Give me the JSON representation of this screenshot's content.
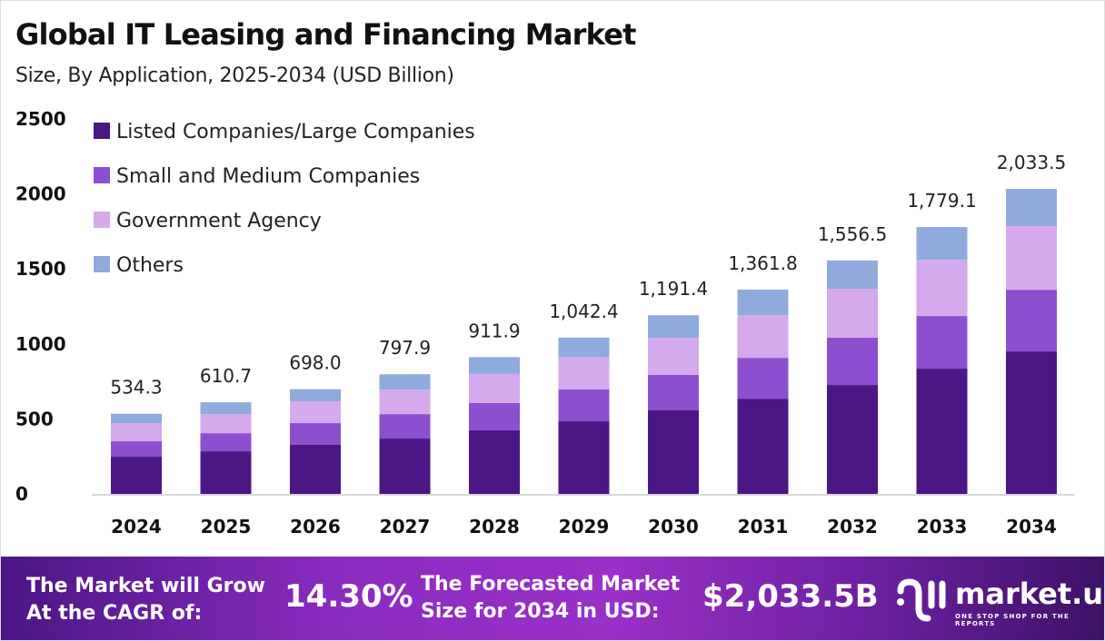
{
  "chart_data": {
    "type": "bar",
    "stacked": true,
    "title": "Global IT Leasing and Financing Market",
    "subtitle": "Size, By Application, 2025-2034 (USD Billion)",
    "categories": [
      "2024",
      "2025",
      "2026",
      "2027",
      "2028",
      "2029",
      "2030",
      "2031",
      "2032",
      "2033",
      "2034"
    ],
    "series": [
      {
        "name": "Listed Companies/Large Companies",
        "color": "#4b1785",
        "values": [
          248,
          284,
          327,
          369,
          424,
          484,
          557,
          635,
          726,
          835,
          950
        ]
      },
      {
        "name": "Small and Medium Companies",
        "color": "#8b4fd0",
        "values": [
          103,
          121,
          145,
          163,
          182,
          212,
          236,
          272,
          315,
          351,
          411
        ]
      },
      {
        "name": "Government Agency",
        "color": "#d4aaec",
        "values": [
          121,
          127,
          145,
          163,
          194,
          218,
          248,
          284,
          327,
          375,
          424
        ]
      },
      {
        "name": "Others",
        "color": "#8faadc",
        "values": [
          62.3,
          78.7,
          81,
          102.9,
          111.9,
          128.4,
          150.4,
          170.8,
          188.5,
          218.1,
          248.5
        ]
      }
    ],
    "totals": [
      "534.3",
      "610.7",
      "698.0",
      "797.9",
      "911.9",
      "1,042.4",
      "1,191.4",
      "1,361.8",
      "1,556.5",
      "1,779.1",
      "2,033.5"
    ],
    "yticks": [
      "0",
      "500",
      "1000",
      "1500",
      "2000",
      "2500"
    ],
    "ylim": [
      0,
      2500
    ],
    "grid": false,
    "legend": "top-left"
  },
  "footer": {
    "cagr_label": [
      "The Market will Grow",
      "At the CAGR of:"
    ],
    "cagr_value": "14.30%",
    "forecast_label": [
      "The Forecasted Market",
      "Size for 2034 in USD:"
    ],
    "forecast_value": "$2,033.5B",
    "logo": "market.us",
    "logo_tagline": "ONE STOP SHOP FOR THE REPORTS"
  }
}
